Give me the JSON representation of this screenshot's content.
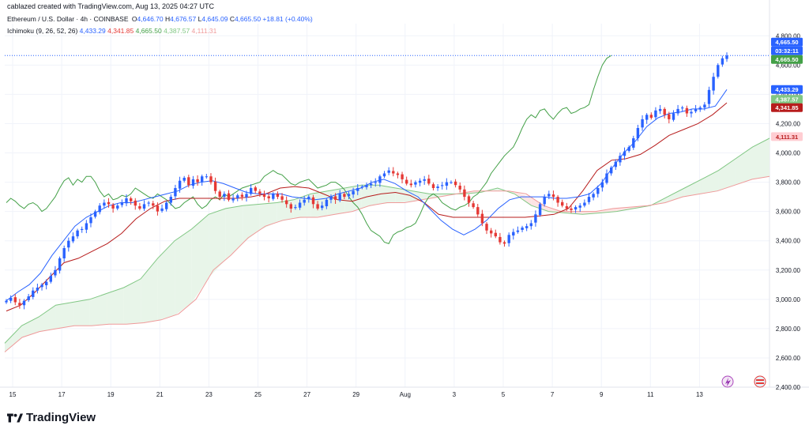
{
  "header": {
    "created_by": "cablazed created with TradingView.com, Aug 13, 2025 04:27 UTC",
    "symbol": "Ethereum / U.S. Dollar · 4h · COINBASE",
    "o_label": "O",
    "o_value": "4,646.70",
    "h_label": "H",
    "h_value": "4,676.57",
    "l_label": "L",
    "l_value": "4,645.09",
    "c_label": "C",
    "c_value": "4,665.50",
    "change": "+18.81 (+0.40%)",
    "indicator_name": "Ichimoku (9, 26, 52, 26)",
    "indicator_values": [
      "4,433.29",
      "4,341.85",
      "4,665.50",
      "4,387.57",
      "4,111.31"
    ]
  },
  "price_tags": {
    "current_price": "4,665.50",
    "countdown": "03:32:11",
    "current_close_tag": "4,665.50",
    "conversion_line": "4,433.29",
    "leading_span_a": "4,387.57",
    "base_line": "4,341.85",
    "leading_span_b": "4,111.31"
  },
  "logo_text": "TradingView",
  "colors": {
    "up": "#2962ff",
    "down": "#e53935",
    "conversion": "#2962ff",
    "base": "#b71c1c",
    "lagging": "#43a047",
    "span_a": "#81c784",
    "span_b": "#ef9a9a",
    "cloud_bull": "#e8f5e9",
    "cloud_bear": "#fde4e4"
  },
  "chart_data": {
    "type": "candlestick",
    "symbol": "ETHUSD",
    "timeframe": "4h",
    "ylim": [
      2400,
      4850
    ],
    "y_ticks": [
      "4,800.00",
      "4,600.00",
      "4,400.00",
      "4,200.00",
      "4,000.00",
      "3,800.00",
      "3,600.00",
      "3,400.00",
      "3,200.00",
      "3,000.00",
      "2,800.00",
      "2,600.00",
      "2,400.00"
    ],
    "y_tick_values": [
      4800,
      4600,
      4400,
      4200,
      4000,
      3800,
      3600,
      3400,
      3200,
      3000,
      2800,
      2600,
      2400
    ],
    "x_ticks": [
      "15",
      "17",
      "19",
      "21",
      "23",
      "25",
      "27",
      "29",
      "Aug",
      "3",
      "5",
      "7",
      "9",
      "11",
      "13"
    ],
    "last_price": 4665.5,
    "candles_close": [
      2990,
      3010,
      2980,
      2960,
      2990,
      3020,
      3060,
      3080,
      3100,
      3120,
      3160,
      3200,
      3280,
      3350,
      3400,
      3430,
      3470,
      3480,
      3520,
      3560,
      3600,
      3640,
      3660,
      3650,
      3620,
      3640,
      3660,
      3690,
      3670,
      3640,
      3620,
      3650,
      3660,
      3640,
      3600,
      3620,
      3660,
      3700,
      3760,
      3810,
      3830,
      3780,
      3820,
      3800,
      3840,
      3840,
      3800,
      3740,
      3700,
      3720,
      3680,
      3690,
      3710,
      3700,
      3720,
      3760,
      3740,
      3720,
      3700,
      3690,
      3720,
      3700,
      3680,
      3650,
      3620,
      3630,
      3660,
      3680,
      3700,
      3650,
      3620,
      3640,
      3680,
      3700,
      3680,
      3720,
      3700,
      3720,
      3740,
      3760,
      3770,
      3780,
      3790,
      3800,
      3840,
      3860,
      3880,
      3860,
      3850,
      3820,
      3790,
      3780,
      3800,
      3810,
      3820,
      3790,
      3760,
      3770,
      3780,
      3800,
      3800,
      3780,
      3750,
      3700,
      3660,
      3630,
      3580,
      3520,
      3470,
      3450,
      3430,
      3390,
      3380,
      3440,
      3460,
      3470,
      3490,
      3500,
      3520,
      3580,
      3650,
      3700,
      3720,
      3700,
      3660,
      3640,
      3620,
      3610,
      3630,
      3640,
      3660,
      3700,
      3720,
      3760,
      3800,
      3860,
      3900,
      3940,
      3980,
      4010,
      4040,
      4100,
      4170,
      4230,
      4260,
      4240,
      4290,
      4300,
      4260,
      4230,
      4270,
      4300,
      4310,
      4270,
      4280,
      4300,
      4310,
      4330,
      4430,
      4520,
      4600,
      4646,
      4665
    ],
    "ichimoku": {
      "conversion_line": [
        2990,
        3050,
        3100,
        3180,
        3300,
        3400,
        3500,
        3560,
        3600,
        3640,
        3660,
        3660,
        3680,
        3700,
        3720,
        3740,
        3780,
        3800,
        3810,
        3790,
        3760,
        3730,
        3720,
        3720,
        3720,
        3700,
        3690,
        3680,
        3690,
        3720,
        3740,
        3760,
        3800,
        3820,
        3790,
        3740,
        3700,
        3620,
        3540,
        3480,
        3440,
        3480,
        3540,
        3620,
        3680,
        3700,
        3700,
        3700,
        3690,
        3690,
        3700,
        3720,
        3790,
        3900,
        4000,
        4080,
        4180,
        4240,
        4270,
        4280,
        4300,
        4300,
        4320,
        4433
      ],
      "base_line": [
        2920,
        2960,
        3050,
        3150,
        3250,
        3280,
        3330,
        3380,
        3450,
        3550,
        3620,
        3670,
        3690,
        3690,
        3690,
        3690,
        3690,
        3700,
        3720,
        3760,
        3770,
        3760,
        3720,
        3680,
        3670,
        3700,
        3720,
        3730,
        3710,
        3660,
        3580,
        3560,
        3560,
        3560,
        3560,
        3560,
        3560,
        3570,
        3580,
        3620,
        3740,
        3880,
        3950,
        3960,
        3990,
        4050,
        4120,
        4160,
        4200,
        4260,
        4342
      ],
      "leading_span_a": [
        2700,
        2820,
        2880,
        2960,
        2980,
        3000,
        3040,
        3080,
        3140,
        3280,
        3400,
        3480,
        3580,
        3620,
        3640,
        3650,
        3660,
        3680,
        3720,
        3740,
        3760,
        3780,
        3780,
        3760,
        3740,
        3720,
        3720,
        3720,
        3730,
        3760,
        3720,
        3640,
        3600,
        3590,
        3580,
        3590,
        3600,
        3620,
        3640,
        3700,
        3760,
        3820,
        3880,
        3960,
        4040,
        4100
      ],
      "leading_span_b": [
        2640,
        2740,
        2780,
        2800,
        2820,
        2820,
        2830,
        2830,
        2840,
        2860,
        2900,
        3000,
        3200,
        3300,
        3420,
        3500,
        3540,
        3560,
        3560,
        3580,
        3600,
        3640,
        3660,
        3660,
        3680,
        3700,
        3720,
        3740,
        3740,
        3740,
        3720,
        3640,
        3600,
        3600,
        3600,
        3620,
        3630,
        3640,
        3660,
        3700,
        3720,
        3740,
        3780,
        3820,
        3840
      ]
    }
  }
}
